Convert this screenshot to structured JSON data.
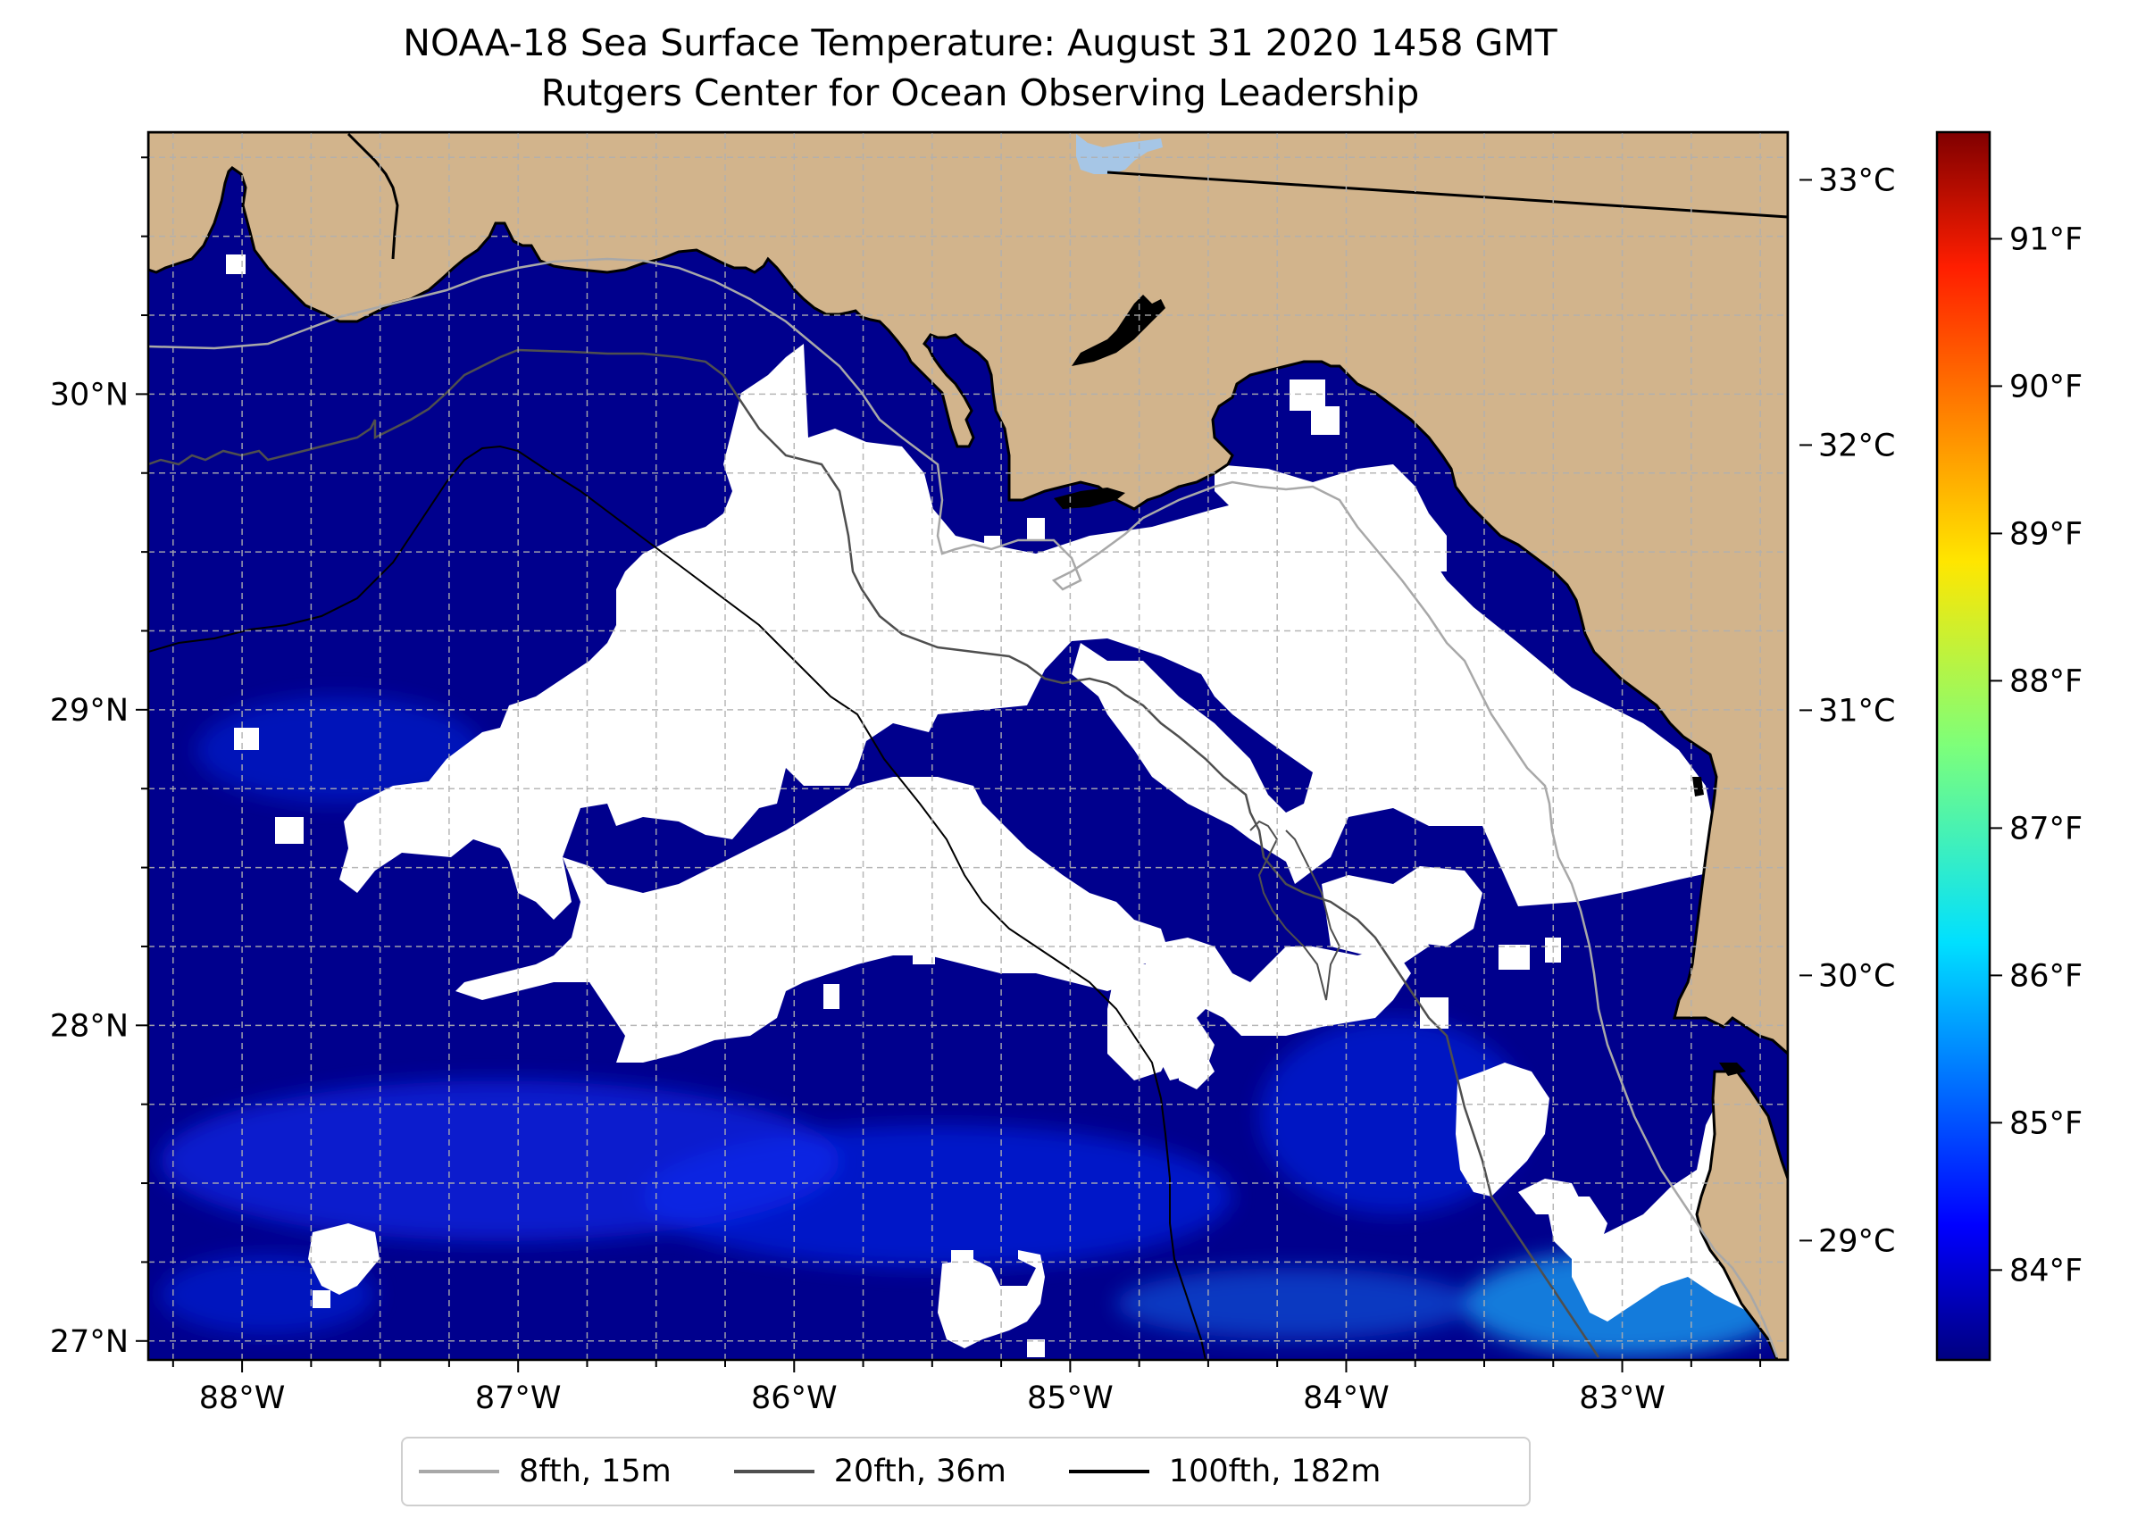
{
  "title": "NOAA-18 Sea Surface Temperature: August 31 2020 1458 GMT",
  "subtitle": "Rutgers Center for Ocean Observing Leadership",
  "map": {
    "lon_range": [
      -88.34,
      -82.4
    ],
    "lat_range": [
      26.94,
      30.83
    ],
    "x_ticks": [
      {
        "lon": -88,
        "label": "88°W"
      },
      {
        "lon": -87,
        "label": "87°W"
      },
      {
        "lon": -86,
        "label": "86°W"
      },
      {
        "lon": -85,
        "label": "85°W"
      },
      {
        "lon": -84,
        "label": "84°W"
      },
      {
        "lon": -83,
        "label": "83°W"
      }
    ],
    "y_ticks": [
      {
        "lat": 30,
        "label": "30°N"
      },
      {
        "lat": 29,
        "label": "29°N"
      },
      {
        "lat": 28,
        "label": "28°N"
      },
      {
        "lat": 27,
        "label": "27°N"
      }
    ],
    "colors": {
      "land": "#d2b48c",
      "cloud_mask": "#ffffff",
      "sst_base": "#00008d",
      "sst_warmer": "#0a2af0",
      "sst_warmest": "#1aa4f5",
      "lake": "#a6c6e6",
      "gridline": "#b0b0b0"
    }
  },
  "colorbar": {
    "colormap": "jet",
    "celsius_ticks": [
      {
        "value": 29,
        "label": "29°C"
      },
      {
        "value": 30,
        "label": "30°C"
      },
      {
        "value": 31,
        "label": "31°C"
      },
      {
        "value": 32,
        "label": "32°C"
      },
      {
        "value": 33,
        "label": "33°C"
      }
    ],
    "fahrenheit_ticks": [
      {
        "value": 84,
        "label": "84°F"
      },
      {
        "value": 85,
        "label": "85°F"
      },
      {
        "value": 86,
        "label": "86°F"
      },
      {
        "value": 87,
        "label": "87°F"
      },
      {
        "value": 88,
        "label": "88°F"
      },
      {
        "value": 89,
        "label": "89°F"
      },
      {
        "value": 90,
        "label": "90°F"
      },
      {
        "value": 91,
        "label": "91°F"
      }
    ],
    "range_c": [
      28.55,
      33.18
    ]
  },
  "legend": [
    {
      "label": "8fth, 15m",
      "color": "#a8a8a8"
    },
    {
      "label": "20fth, 36m",
      "color": "#4f4f4f"
    },
    {
      "label": "100fth, 182m",
      "color": "#000000"
    }
  ]
}
